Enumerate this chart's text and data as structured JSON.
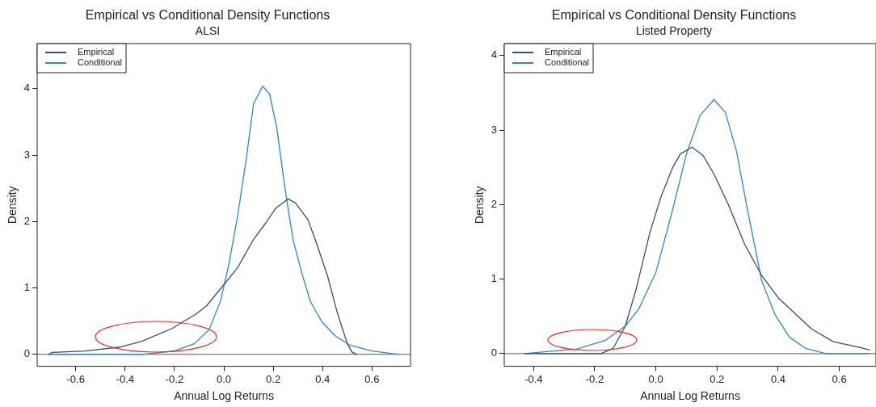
{
  "chart_data": [
    {
      "type": "line",
      "title": "Empirical vs Conditional Density Functions",
      "subtitle": "ALSI",
      "xlabel": "Annual Log Returns",
      "ylabel": "Density",
      "xlim": [
        -0.756,
        0.756
      ],
      "ylim": [
        -0.18,
        4.68
      ],
      "xticks": [
        -0.6,
        -0.4,
        -0.2,
        {
          "value": 0,
          "label": "0.0"
        },
        0.2,
        0.4,
        0.6
      ],
      "yticks": [
        0,
        1,
        2,
        3,
        4
      ],
      "legend": "top left",
      "ref_lines": [
        {
          "axis": "y",
          "value": 0,
          "color": "#555555"
        }
      ],
      "series": [
        {
          "name": "Empirical",
          "color": "#34506e",
          "x": [
            -0.71,
            -0.695,
            -0.56,
            -0.42,
            -0.33,
            -0.21,
            -0.116,
            -0.07,
            0,
            0.055,
            0.12,
            0.17,
            0.21,
            0.26,
            0.29,
            0.34,
            0.37,
            0.42,
            0.46,
            0.5,
            0.52,
            0.54
          ],
          "values": [
            0,
            0.03,
            0.05,
            0.11,
            0.2,
            0.39,
            0.6,
            0.73,
            1.05,
            1.3,
            1.73,
            1.98,
            2.2,
            2.34,
            2.28,
            2.03,
            1.73,
            1.18,
            0.62,
            0.16,
            0.03,
            0
          ]
        },
        {
          "name": "Conditional",
          "color": "#2f86d2",
          "x": [
            -0.71,
            -0.33,
            -0.2,
            -0.12,
            -0.06,
            -0.014,
            0.02,
            0.055,
            0.09,
            0.12,
            0.157,
            0.185,
            0.214,
            0.248,
            0.28,
            0.316,
            0.35,
            0.395,
            0.45,
            0.51,
            0.6,
            0.71
          ],
          "values": [
            0,
            0,
            0.05,
            0.16,
            0.37,
            0.8,
            1.35,
            2.07,
            2.92,
            3.77,
            4.04,
            3.92,
            3.42,
            2.49,
            1.73,
            1.22,
            0.8,
            0.5,
            0.28,
            0.14,
            0.05,
            0
          ]
        }
      ]
    },
    {
      "type": "line",
      "title": "Empirical vs Conditional Density Functions",
      "subtitle": "Listed Property",
      "xlabel": "Annual Log Returns",
      "ylabel": "Density",
      "xlim": [
        -0.496,
        0.72
      ],
      "ylim": [
        -0.17,
        4.16
      ],
      "xticks": [
        -0.4,
        -0.2,
        {
          "value": 0,
          "label": "0.0"
        },
        0.2,
        0.4,
        0.6
      ],
      "yticks": [
        0,
        1,
        2,
        3,
        4
      ],
      "legend": "top left",
      "ref_lines": [
        {
          "axis": "y",
          "value": 0,
          "color": "#555555"
        }
      ],
      "series": [
        {
          "name": "Empirical",
          "color": "#34506e",
          "x": [
            -0.43,
            -0.18,
            -0.14,
            -0.1,
            -0.065,
            -0.02,
            0.017,
            0.054,
            0.08,
            0.118,
            0.154,
            0.19,
            0.237,
            0.29,
            0.346,
            0.4,
            0.46,
            0.51,
            0.58,
            0.66,
            0.7
          ],
          "values": [
            0,
            0,
            0.07,
            0.37,
            0.86,
            1.62,
            2.11,
            2.49,
            2.68,
            2.77,
            2.66,
            2.41,
            2,
            1.47,
            1.05,
            0.75,
            0.52,
            0.33,
            0.16,
            0.09,
            0.05
          ]
        },
        {
          "name": "Conditional",
          "color": "#2f86d2",
          "x": [
            -0.43,
            -0.35,
            -0.26,
            -0.165,
            -0.1,
            -0.056,
            0,
            0.054,
            0.1,
            0.145,
            0.19,
            0.227,
            0.264,
            0.3,
            0.346,
            0.39,
            0.437,
            0.49,
            0.556,
            0.7
          ],
          "values": [
            0,
            0.03,
            0.06,
            0.18,
            0.37,
            0.6,
            1.09,
            1.92,
            2.68,
            3.2,
            3.41,
            3.24,
            2.71,
            1.92,
            0.98,
            0.52,
            0.22,
            0.07,
            0,
            0
          ]
        }
      ]
    }
  ]
}
